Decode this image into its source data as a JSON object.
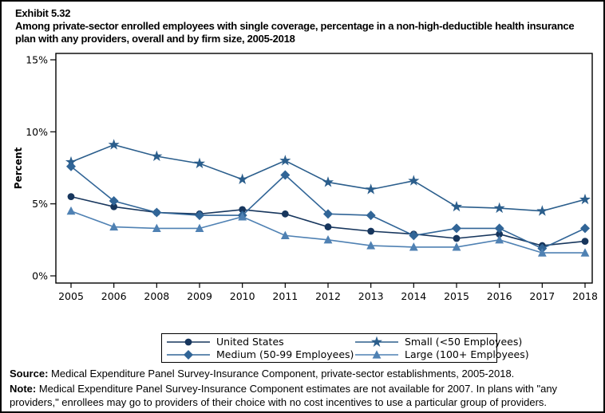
{
  "header": {
    "exhibit": "Exhibit 5.32",
    "title": "Among private-sector enrolled employees with single coverage, percentage in a non-high-deductible health insurance plan with any providers, overall and by firm size, 2005-2018"
  },
  "chart_data": {
    "type": "line",
    "title": "Exhibit 5.32. Among private-sector enrolled employees with single coverage, percentage in a non-high-deductible health insurance plan with any providers, overall and by firm size, 2005-2018",
    "categories": [
      "2005",
      "2006",
      "2008",
      "2009",
      "2010",
      "2011",
      "2012",
      "2013",
      "2014",
      "2015",
      "2016",
      "2017",
      "2018"
    ],
    "xlabel": "",
    "ylabel": "Percent",
    "ylim": [
      0,
      15
    ],
    "ytick_labels": [
      "0%",
      "5%",
      "10%",
      "15%"
    ],
    "ytick_values": [
      0,
      5,
      10,
      15
    ],
    "grid": false,
    "legend_position": "bottom",
    "note_missing_year": "2007 estimates not available",
    "series": [
      {
        "name": "United States",
        "marker": "circle",
        "color": "#17365D",
        "values": [
          5.5,
          4.8,
          4.4,
          4.3,
          4.6,
          4.3,
          3.4,
          3.1,
          2.9,
          2.6,
          2.9,
          2.1,
          2.4
        ]
      },
      {
        "name": "Small (<50 Employees)",
        "marker": "star",
        "color": "#2B5E8C",
        "values": [
          7.9,
          9.1,
          8.3,
          7.8,
          6.7,
          8.0,
          6.5,
          6.0,
          6.6,
          4.8,
          4.7,
          4.5,
          5.3
        ]
      },
      {
        "name": "Medium (50-99 Employees)",
        "marker": "diamond",
        "color": "#316597",
        "values": [
          7.6,
          5.2,
          4.4,
          4.2,
          4.2,
          7.0,
          4.3,
          4.2,
          2.8,
          3.3,
          3.3,
          1.9,
          3.3
        ]
      },
      {
        "name": "Large (100+ Employees)",
        "marker": "triangle",
        "color": "#4F81B3",
        "values": [
          4.5,
          3.4,
          3.3,
          3.3,
          4.1,
          2.8,
          2.5,
          2.1,
          2.0,
          2.0,
          2.5,
          1.6,
          1.6
        ]
      }
    ],
    "legend_order": [
      0,
      1,
      2,
      3
    ]
  },
  "footer": {
    "source_label": "Source:",
    "source_text": "Medical Expenditure Panel Survey-Insurance Component, private-sector establishments, 2005-2018.",
    "note_label": "Note:",
    "note_text": "Medical Expenditure Panel Survey-Insurance Component estimates are not available for 2007. In plans with \"any providers,\" enrollees may go to providers of their choice with no cost incentives to use a particular group of providers."
  }
}
